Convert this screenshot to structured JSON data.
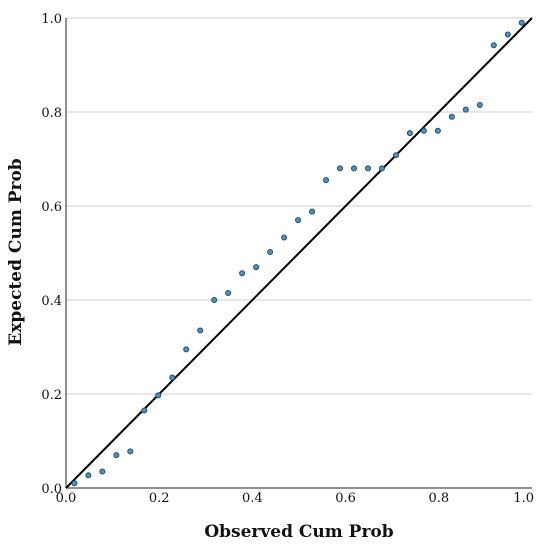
{
  "chart_data": {
    "type": "scatter",
    "title": "",
    "xlabel": "Observed Cum Prob",
    "ylabel": "Expected Cum Prob",
    "xlim": [
      0,
      1
    ],
    "ylim": [
      0,
      1
    ],
    "x_ticks": [
      "0.0",
      "0.2",
      "0.4",
      "0.6",
      "0.8",
      "1.0"
    ],
    "y_ticks": [
      "0.0",
      "0.2",
      "0.4",
      "0.6",
      "0.8",
      "1.0"
    ],
    "grid": "horizontal",
    "reference_line": {
      "from": [
        0,
        0
      ],
      "to": [
        1,
        1
      ]
    },
    "point_color": "#4a90c0",
    "points": [
      {
        "x": 0.018,
        "y": 0.01
      },
      {
        "x": 0.048,
        "y": 0.027
      },
      {
        "x": 0.078,
        "y": 0.035
      },
      {
        "x": 0.108,
        "y": 0.07
      },
      {
        "x": 0.138,
        "y": 0.078
      },
      {
        "x": 0.168,
        "y": 0.165
      },
      {
        "x": 0.198,
        "y": 0.197
      },
      {
        "x": 0.228,
        "y": 0.235
      },
      {
        "x": 0.258,
        "y": 0.295
      },
      {
        "x": 0.288,
        "y": 0.335
      },
      {
        "x": 0.318,
        "y": 0.4
      },
      {
        "x": 0.348,
        "y": 0.415
      },
      {
        "x": 0.378,
        "y": 0.457
      },
      {
        "x": 0.408,
        "y": 0.47
      },
      {
        "x": 0.438,
        "y": 0.502
      },
      {
        "x": 0.468,
        "y": 0.533
      },
      {
        "x": 0.498,
        "y": 0.57
      },
      {
        "x": 0.528,
        "y": 0.588
      },
      {
        "x": 0.558,
        "y": 0.655
      },
      {
        "x": 0.588,
        "y": 0.68
      },
      {
        "x": 0.618,
        "y": 0.68
      },
      {
        "x": 0.648,
        "y": 0.68
      },
      {
        "x": 0.678,
        "y": 0.68
      },
      {
        "x": 0.708,
        "y": 0.708
      },
      {
        "x": 0.738,
        "y": 0.755
      },
      {
        "x": 0.768,
        "y": 0.76
      },
      {
        "x": 0.798,
        "y": 0.76
      },
      {
        "x": 0.828,
        "y": 0.79
      },
      {
        "x": 0.858,
        "y": 0.805
      },
      {
        "x": 0.888,
        "y": 0.815
      },
      {
        "x": 0.918,
        "y": 0.942
      },
      {
        "x": 0.948,
        "y": 0.965
      },
      {
        "x": 0.978,
        "y": 0.99
      }
    ]
  }
}
